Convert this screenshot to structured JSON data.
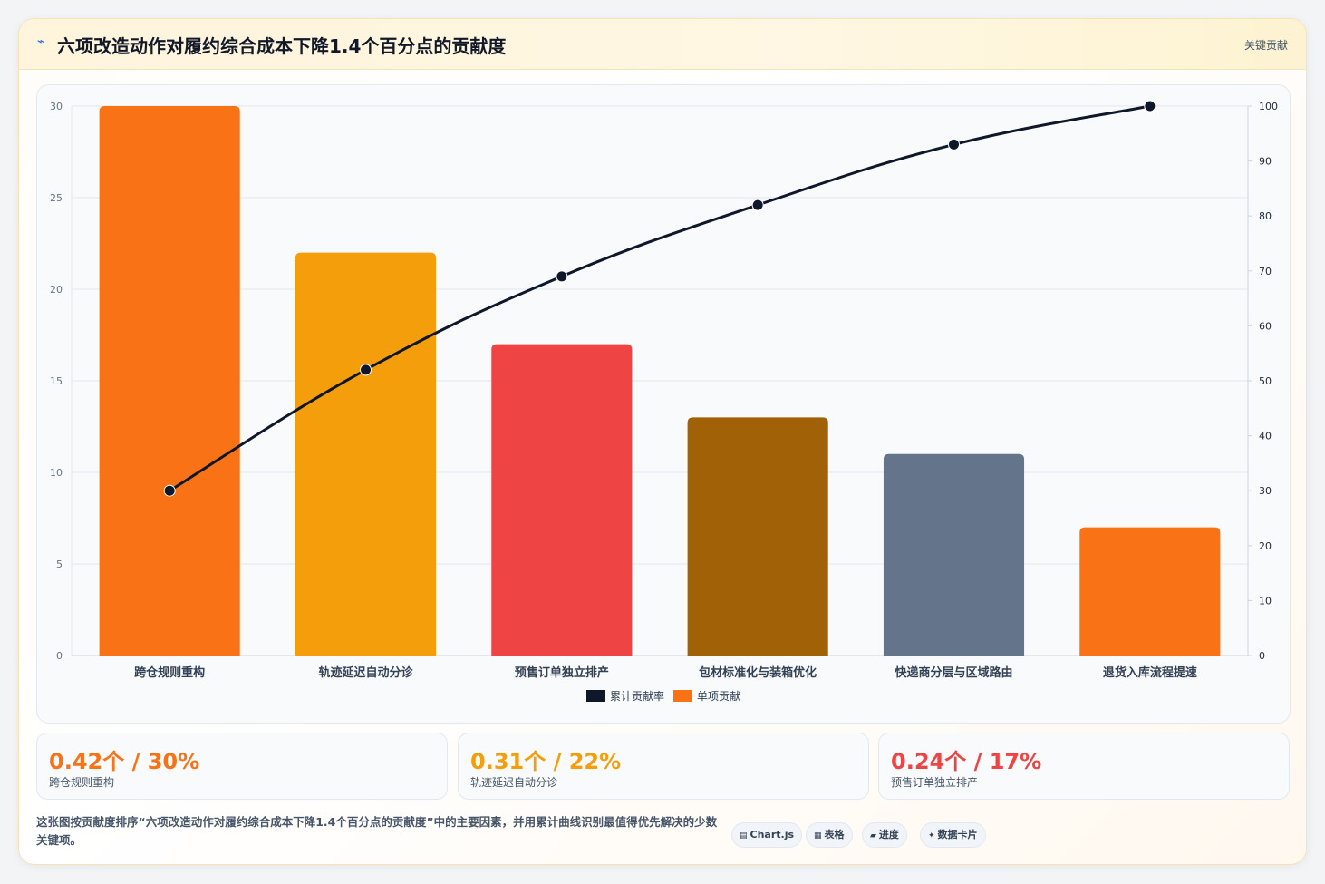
{
  "header": {
    "icon": "chart-line-icon",
    "title": "六项改造动作对履约综合成本下降1.4个百分点的贡献度",
    "tag": "关键贡献"
  },
  "chart_data": {
    "type": "bar",
    "categories": [
      "跨仓规则重构",
      "轨迹延迟自动分诊",
      "预售订单独立排产",
      "包材标准化与装箱优化",
      "快递商分层与区域路由",
      "退货入库流程提速"
    ],
    "series": [
      {
        "name": "单项贡献",
        "type": "bar",
        "axis": "left",
        "values": [
          30,
          22,
          17,
          13,
          11,
          7
        ]
      },
      {
        "name": "累计贡献率",
        "type": "line",
        "axis": "right",
        "values": [
          30,
          52,
          69,
          82,
          93,
          100
        ]
      }
    ],
    "bar_colors": [
      "#f97316",
      "#f59e0b",
      "#ef4444",
      "#a16207",
      "#64748b",
      "#f97316"
    ],
    "line_color": "#0f172a",
    "left_axis": {
      "ylim": [
        0,
        30
      ],
      "ticks": [
        0,
        5,
        10,
        15,
        20,
        25,
        30
      ]
    },
    "right_axis": {
      "ylim": [
        0,
        100
      ],
      "ticks": [
        0,
        10,
        20,
        30,
        40,
        50,
        60,
        70,
        80,
        90,
        100
      ]
    },
    "legend": {
      "position": "bottom-center",
      "items": [
        {
          "label": "累计贡献率",
          "color": "#0f172a"
        },
        {
          "label": "单项贡献",
          "color": "#f97316"
        }
      ]
    },
    "grid": true
  },
  "stats": [
    {
      "value": "0.42个 / 30%",
      "label": "跨仓规则重构",
      "color": "#f97316"
    },
    {
      "value": "0.31个 / 22%",
      "label": "轨迹延迟自动分诊",
      "color": "#f59e0b"
    },
    {
      "value": "0.24个 / 17%",
      "label": "预售订单独立排产",
      "color": "#ef4444"
    }
  ],
  "description": "这张图按贡献度排序“六项改造动作对履约综合成本下降1.4个百分点的贡献度”中的主要因素，并用累计曲线识别最值得优先解决的少数关键项。",
  "pills": [
    {
      "icon": "chart-icon",
      "glyph": "▤",
      "label": "Chart.js"
    },
    {
      "icon": "table-icon",
      "glyph": "▦",
      "label": "表格"
    },
    {
      "icon": "progress-icon",
      "glyph": "▰",
      "label": "进度"
    },
    {
      "icon": "card-icon",
      "glyph": "✦",
      "label": "数据卡片"
    }
  ]
}
